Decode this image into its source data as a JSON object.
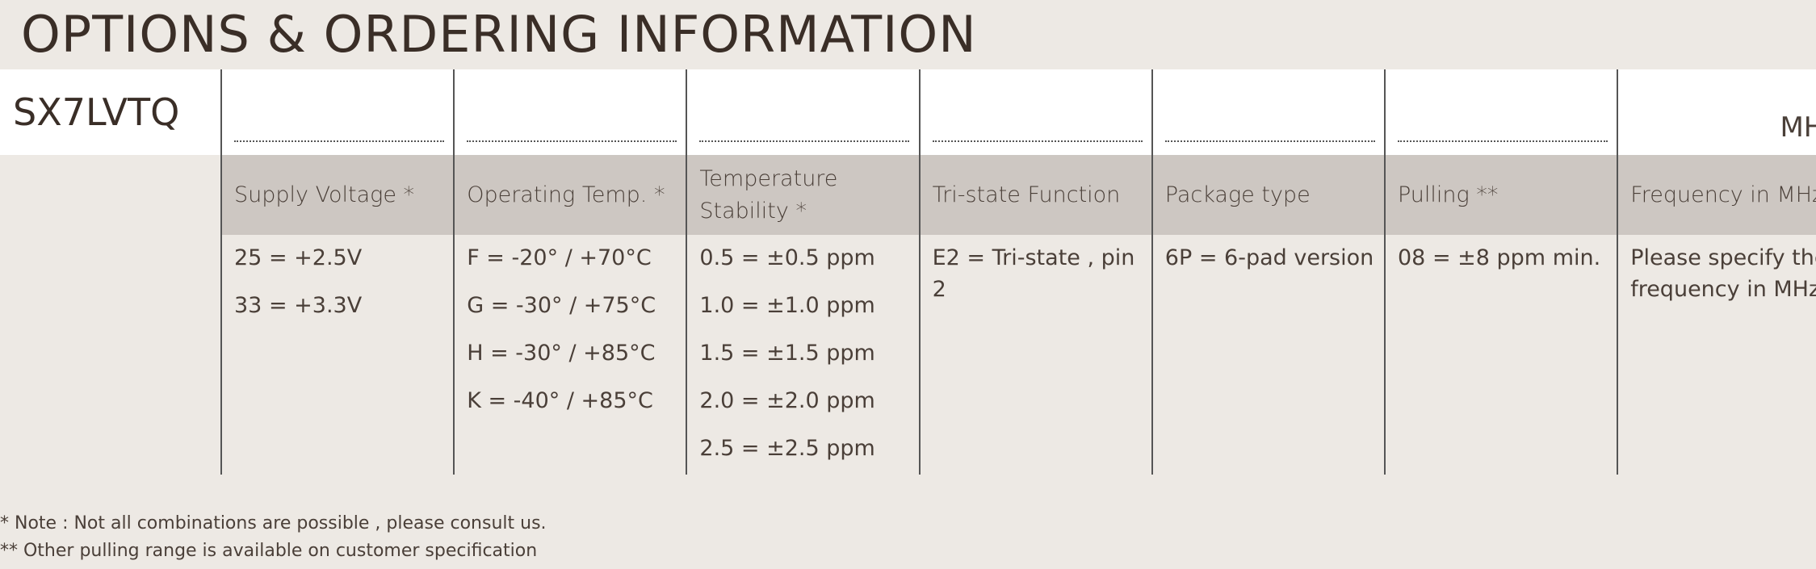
{
  "header": {
    "title": "OPTIONS & ORDERING INFORMATION"
  },
  "model": "SX7LVTQ",
  "unit": "MHz",
  "columns": [
    {
      "header": "Supply Voltage *",
      "options": [
        "25 = +2.5V",
        "33 = +3.3V"
      ]
    },
    {
      "header": "Operating Temp. *",
      "options": [
        "F = -20° / +70°C",
        "G = -30° / +75°C",
        "H = -30° / +85°C",
        "K = -40° / +85°C"
      ]
    },
    {
      "header": "Temperature Stability *",
      "options": [
        "0.5 = ±0.5 ppm",
        "1.0 = ±1.0 ppm",
        "1.5 = ±1.5 ppm",
        "2.0 = ±2.0 ppm",
        "2.5 = ±2.5 ppm"
      ]
    },
    {
      "header": "Tri-state Function",
      "options": [
        "E2 = Tri-state , pin 2"
      ]
    },
    {
      "header": "Package type",
      "options": [
        "6P = 6-pad version"
      ]
    },
    {
      "header": "Pulling **",
      "options": [
        "08 =  ±8 ppm min."
      ]
    },
    {
      "header": "Frequency in MHz",
      "options": [
        "Please specify the frequency in MHz"
      ]
    }
  ],
  "notes": [
    "* Note : Not all combinations are possible , please consult us.",
    "** Other pulling range is available on customer specification"
  ]
}
